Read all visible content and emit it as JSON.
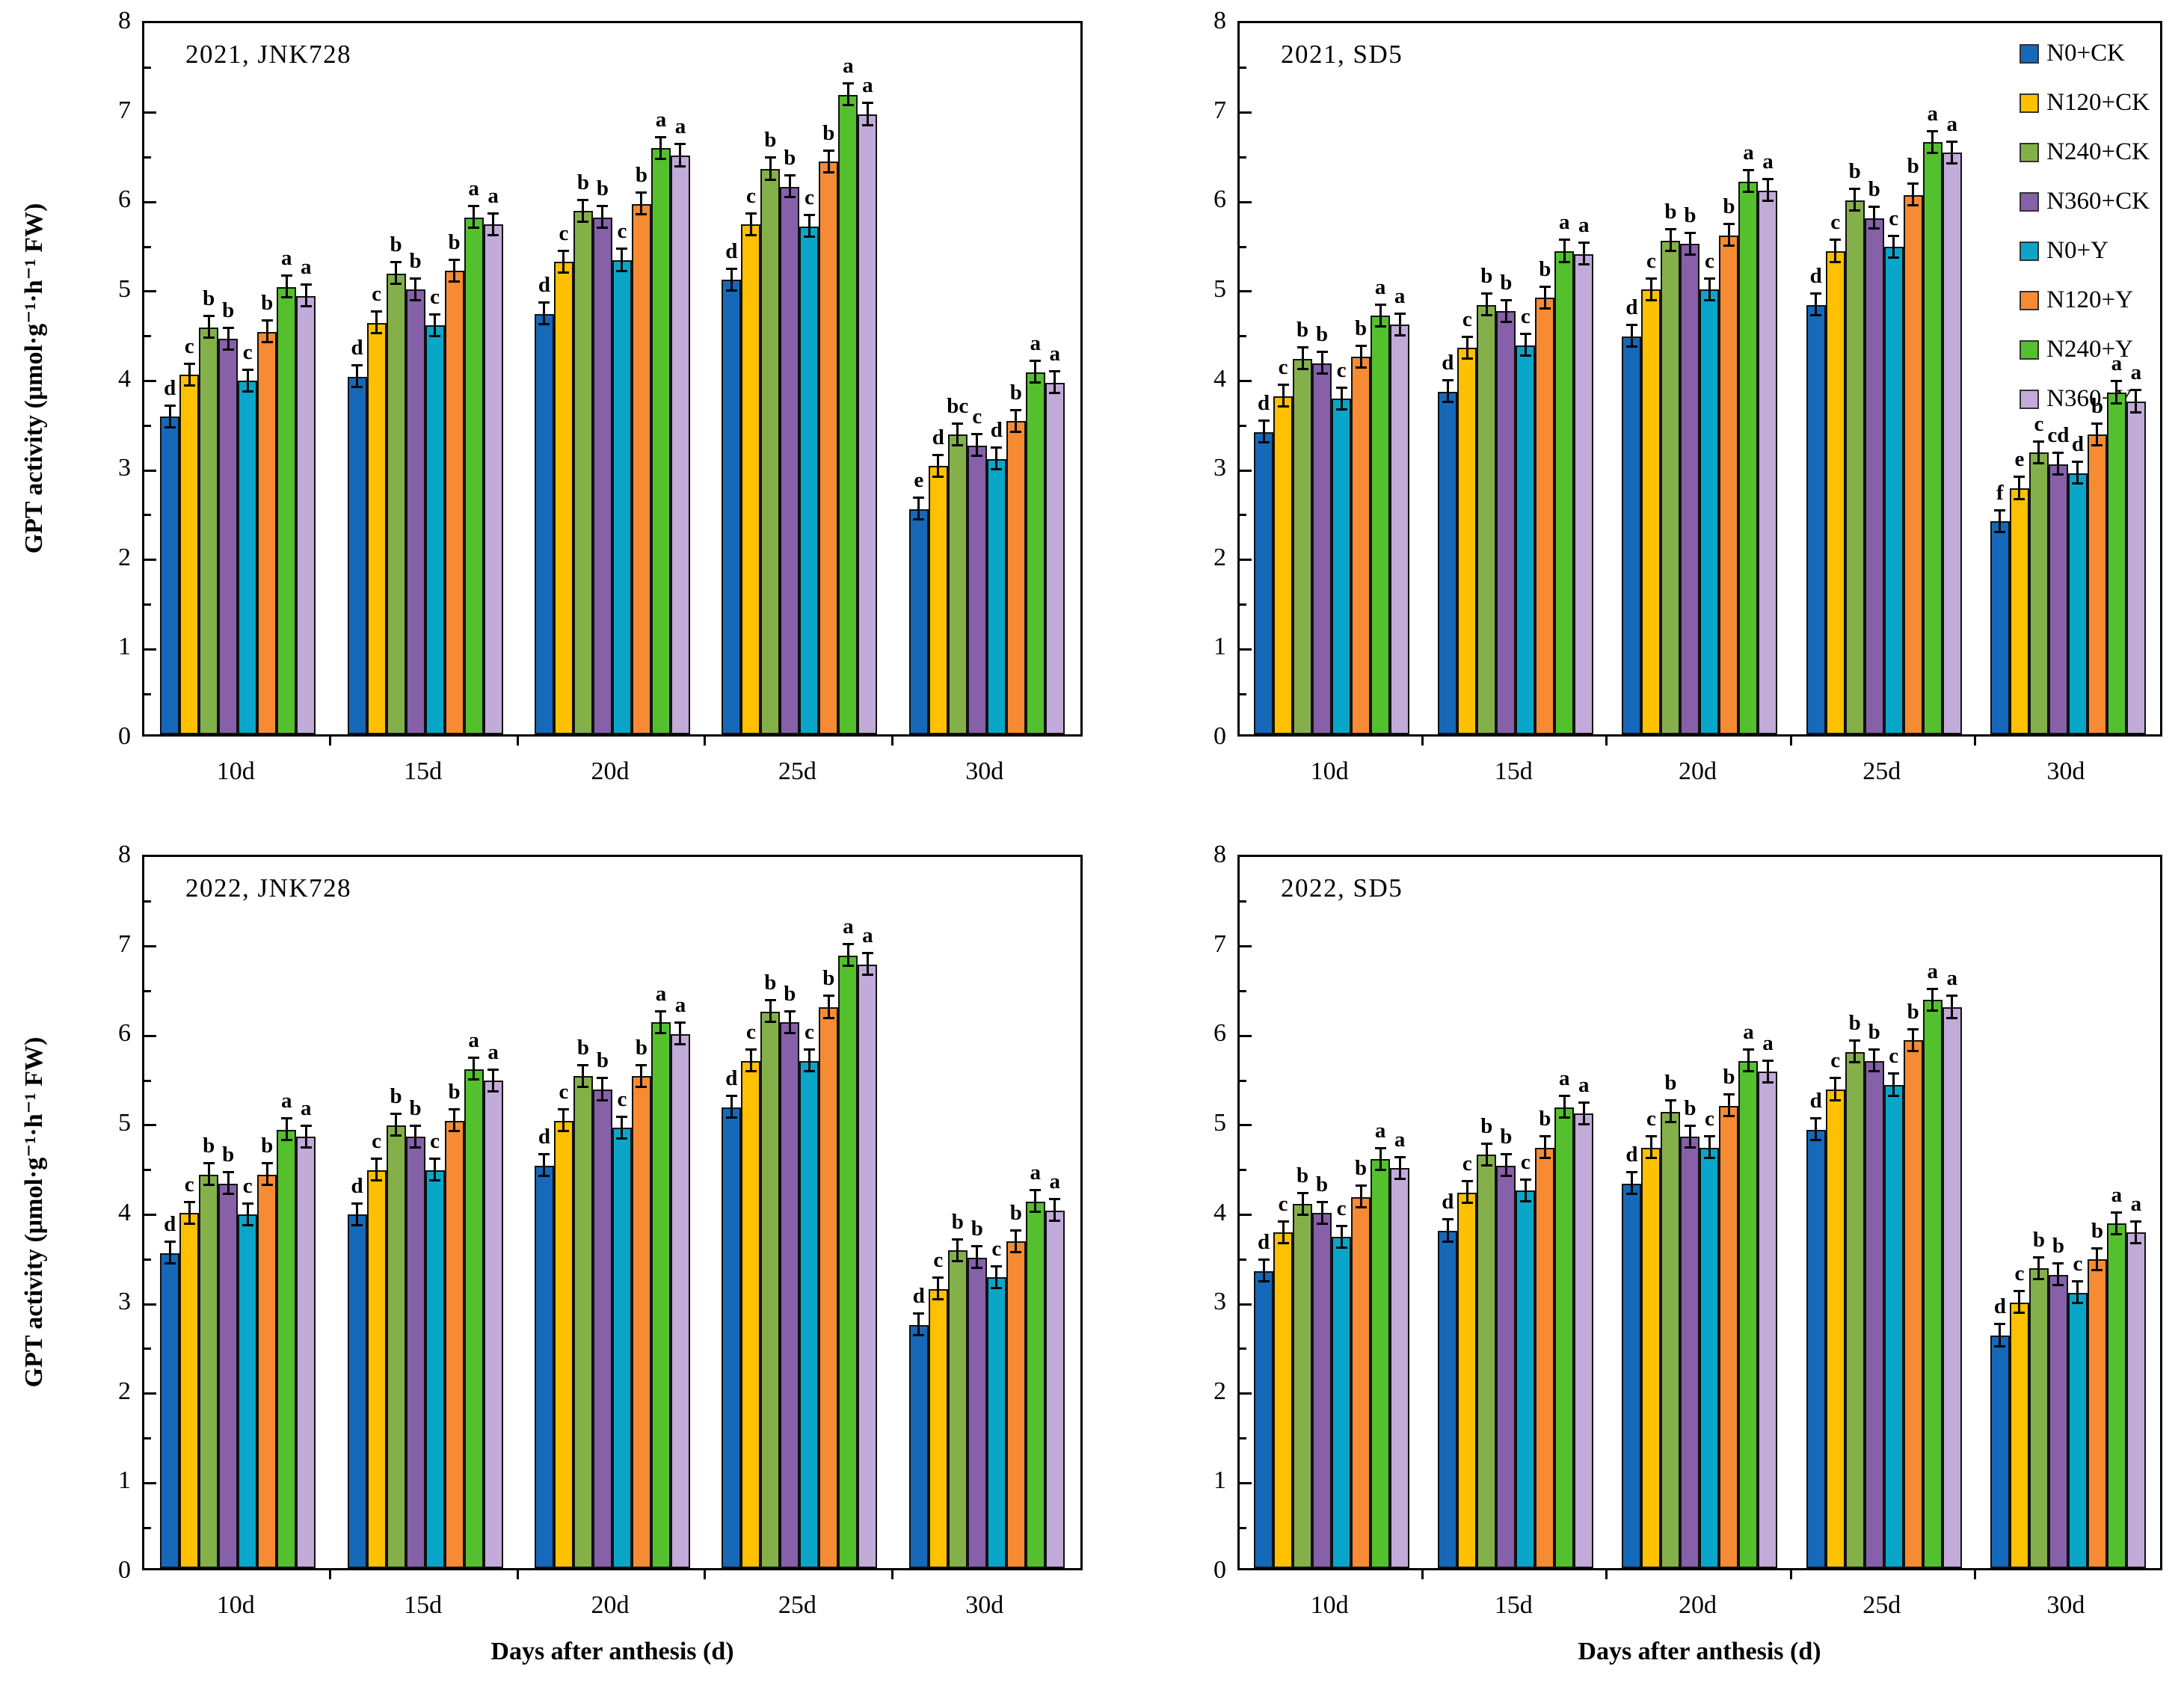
{
  "figure": {
    "y_axis_title": "GPT activity (μmol·g⁻¹·h⁻¹ FW)",
    "x_axis_title": "Days after anthesis (d)",
    "y_ticks": [
      0,
      1,
      2,
      3,
      4,
      5,
      6,
      7,
      8
    ],
    "y_max": 8,
    "categories": [
      "10d",
      "15d",
      "20d",
      "25d",
      "30d"
    ],
    "error_bar_approx": 0.13,
    "legend": [
      {
        "label": "N0+CK",
        "color": "#1569b8"
      },
      {
        "label": "N120+CK",
        "color": "#ffc000"
      },
      {
        "label": "N240+CK",
        "color": "#84b04a"
      },
      {
        "label": "N360+CK",
        "color": "#8660a8"
      },
      {
        "label": "N0+Y",
        "color": "#0aa6c9"
      },
      {
        "label": "N120+Y",
        "color": "#f68b33"
      },
      {
        "label": "N240+Y",
        "color": "#54c02d"
      },
      {
        "label": "N360+Y",
        "color": "#c2aad9"
      }
    ]
  },
  "chart_data": [
    {
      "type": "bar",
      "title": "2021, JNK728",
      "position": "top-left",
      "categories": [
        "10d",
        "15d",
        "20d",
        "25d",
        "30d"
      ],
      "ylim": [
        0,
        8
      ],
      "series": [
        {
          "name": "N0+CK",
          "values": [
            3.55,
            4.0,
            4.7,
            5.08,
            2.52
          ],
          "letters": [
            "d",
            "d",
            "d",
            "d",
            "e"
          ]
        },
        {
          "name": "N120+CK",
          "values": [
            4.02,
            4.6,
            5.28,
            5.7,
            3.0
          ],
          "letters": [
            "c",
            "c",
            "c",
            "c",
            "d"
          ]
        },
        {
          "name": "N240+CK",
          "values": [
            4.55,
            5.15,
            5.85,
            6.32,
            3.35
          ],
          "letters": [
            "b",
            "b",
            "b",
            "b",
            "bc"
          ]
        },
        {
          "name": "N360+CK",
          "values": [
            4.42,
            4.97,
            5.78,
            6.12,
            3.23
          ],
          "letters": [
            "b",
            "b",
            "b",
            "b",
            "c"
          ]
        },
        {
          "name": "N0+Y",
          "values": [
            3.95,
            4.57,
            5.3,
            5.68,
            3.08
          ],
          "letters": [
            "c",
            "c",
            "c",
            "c",
            "d"
          ]
        },
        {
          "name": "N120+Y",
          "values": [
            4.5,
            5.18,
            5.93,
            6.4,
            3.5
          ],
          "letters": [
            "b",
            "b",
            "b",
            "b",
            "b"
          ]
        },
        {
          "name": "N240+Y",
          "values": [
            5.0,
            5.78,
            6.55,
            7.15,
            4.05
          ],
          "letters": [
            "a",
            "a",
            "a",
            "a",
            "a"
          ]
        },
        {
          "name": "N360+Y",
          "values": [
            4.9,
            5.7,
            6.47,
            6.93,
            3.93
          ],
          "letters": [
            "a",
            "a",
            "a",
            "a",
            "a"
          ]
        }
      ]
    },
    {
      "type": "bar",
      "title": "2021, SD5",
      "position": "top-right",
      "categories": [
        "10d",
        "15d",
        "20d",
        "25d",
        "30d"
      ],
      "ylim": [
        0,
        8
      ],
      "series": [
        {
          "name": "N0+CK",
          "values": [
            3.38,
            3.83,
            4.45,
            4.8,
            2.38
          ],
          "letters": [
            "d",
            "d",
            "d",
            "d",
            "f"
          ]
        },
        {
          "name": "N120+CK",
          "values": [
            3.78,
            4.32,
            4.97,
            5.4,
            2.75
          ],
          "letters": [
            "c",
            "c",
            "c",
            "c",
            "e"
          ]
        },
        {
          "name": "N240+CK",
          "values": [
            4.2,
            4.8,
            5.52,
            5.97,
            3.15
          ],
          "letters": [
            "b",
            "b",
            "b",
            "b",
            "c"
          ]
        },
        {
          "name": "N360+CK",
          "values": [
            4.15,
            4.73,
            5.48,
            5.77,
            3.02
          ],
          "letters": [
            "b",
            "b",
            "b",
            "b",
            "cd"
          ]
        },
        {
          "name": "N0+Y",
          "values": [
            3.75,
            4.35,
            4.97,
            5.45,
            2.92
          ],
          "letters": [
            "c",
            "c",
            "c",
            "c",
            "d"
          ]
        },
        {
          "name": "N120+Y",
          "values": [
            4.22,
            4.88,
            5.58,
            6.03,
            3.35
          ],
          "letters": [
            "b",
            "b",
            "b",
            "b",
            "b"
          ]
        },
        {
          "name": "N240+Y",
          "values": [
            4.68,
            5.4,
            6.18,
            6.62,
            3.82
          ],
          "letters": [
            "a",
            "a",
            "a",
            "a",
            "a"
          ]
        },
        {
          "name": "N360+Y",
          "values": [
            4.58,
            5.37,
            6.08,
            6.5,
            3.72
          ],
          "letters": [
            "a",
            "a",
            "a",
            "a",
            "a"
          ]
        }
      ]
    },
    {
      "type": "bar",
      "title": "2022, JNK728",
      "position": "bottom-left",
      "categories": [
        "10d",
        "15d",
        "20d",
        "25d",
        "30d"
      ],
      "ylim": [
        0,
        8
      ],
      "series": [
        {
          "name": "N0+CK",
          "values": [
            3.52,
            3.95,
            4.5,
            5.15,
            2.72
          ],
          "letters": [
            "d",
            "d",
            "d",
            "d",
            "d"
          ]
        },
        {
          "name": "N120+CK",
          "values": [
            3.97,
            4.45,
            5.0,
            5.67,
            3.12
          ],
          "letters": [
            "c",
            "c",
            "c",
            "c",
            "c"
          ]
        },
        {
          "name": "N240+CK",
          "values": [
            4.4,
            4.95,
            5.5,
            6.22,
            3.55
          ],
          "letters": [
            "b",
            "b",
            "b",
            "b",
            "b"
          ]
        },
        {
          "name": "N360+CK",
          "values": [
            4.3,
            4.82,
            5.35,
            6.1,
            3.47
          ],
          "letters": [
            "b",
            "b",
            "b",
            "b",
            "b"
          ]
        },
        {
          "name": "N0+Y",
          "values": [
            3.95,
            4.45,
            4.92,
            5.67,
            3.25
          ],
          "letters": [
            "c",
            "c",
            "c",
            "c",
            "c"
          ]
        },
        {
          "name": "N120+Y",
          "values": [
            4.4,
            5.0,
            5.5,
            6.27,
            3.65
          ],
          "letters": [
            "b",
            "b",
            "b",
            "b",
            "b"
          ]
        },
        {
          "name": "N240+Y",
          "values": [
            4.9,
            5.58,
            6.1,
            6.85,
            4.1
          ],
          "letters": [
            "a",
            "a",
            "a",
            "a",
            "a"
          ]
        },
        {
          "name": "N360+Y",
          "values": [
            4.82,
            5.45,
            5.97,
            6.75,
            4.0
          ],
          "letters": [
            "a",
            "a",
            "a",
            "a",
            "a"
          ]
        }
      ]
    },
    {
      "type": "bar",
      "title": "2022, SD5",
      "position": "bottom-right",
      "categories": [
        "10d",
        "15d",
        "20d",
        "25d",
        "30d"
      ],
      "ylim": [
        0,
        8
      ],
      "series": [
        {
          "name": "N0+CK",
          "values": [
            3.32,
            3.77,
            4.3,
            4.9,
            2.6
          ],
          "letters": [
            "d",
            "d",
            "d",
            "d",
            "d"
          ]
        },
        {
          "name": "N120+CK",
          "values": [
            3.75,
            4.2,
            4.7,
            5.35,
            2.97
          ],
          "letters": [
            "c",
            "c",
            "c",
            "c",
            "c"
          ]
        },
        {
          "name": "N240+CK",
          "values": [
            4.07,
            4.62,
            5.1,
            5.77,
            3.35
          ],
          "letters": [
            "b",
            "b",
            "b",
            "b",
            "b"
          ]
        },
        {
          "name": "N360+CK",
          "values": [
            3.97,
            4.5,
            4.82,
            5.67,
            3.28
          ],
          "letters": [
            "b",
            "b",
            "b",
            "b",
            "b"
          ]
        },
        {
          "name": "N0+Y",
          "values": [
            3.7,
            4.22,
            4.7,
            5.4,
            3.08
          ],
          "letters": [
            "c",
            "c",
            "c",
            "c",
            "c"
          ]
        },
        {
          "name": "N120+Y",
          "values": [
            4.15,
            4.7,
            5.17,
            5.9,
            3.45
          ],
          "letters": [
            "b",
            "b",
            "b",
            "b",
            "b"
          ]
        },
        {
          "name": "N240+Y",
          "values": [
            4.57,
            5.15,
            5.67,
            6.35,
            3.85
          ],
          "letters": [
            "a",
            "a",
            "a",
            "a",
            "a"
          ]
        },
        {
          "name": "N360+Y",
          "values": [
            4.47,
            5.08,
            5.55,
            6.27,
            3.75
          ],
          "letters": [
            "a",
            "a",
            "a",
            "a",
            "a"
          ]
        }
      ]
    }
  ]
}
